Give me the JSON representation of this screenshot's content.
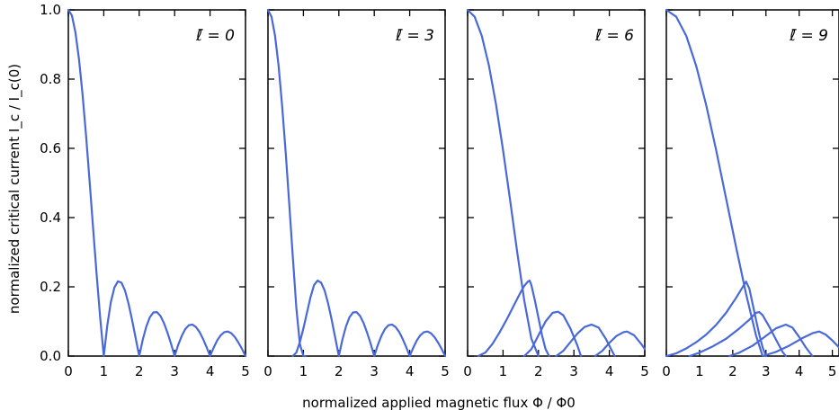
{
  "chart_data": {
    "type": "line",
    "ylabel": "normalized critical current I_c / I_c(0)",
    "xlabel": "normalized applied magnetic flux Φ / Φ0",
    "ylim": [
      0.0,
      1.0
    ],
    "grid": false,
    "line_color": "#4a69d8",
    "y_ticks": [
      "0.0",
      "0.2",
      "0.4",
      "0.6",
      "0.8",
      "1.0"
    ],
    "panels": [
      {
        "label": "ℓ̄ = 0",
        "xlim": [
          0,
          5
        ],
        "x_ticks": [
          "0",
          "1",
          "2",
          "3",
          "4",
          "5"
        ],
        "series": [
          {
            "x": [
              0,
              0.1,
              0.2,
              0.3,
              0.4,
              0.5,
              0.6,
              0.7,
              0.8,
              0.9,
              1.0,
              1.1,
              1.2,
              1.3,
              1.4,
              1.5,
              1.6,
              1.7,
              1.8,
              1.9,
              2.0,
              2.1,
              2.2,
              2.3,
              2.4,
              2.5,
              2.6,
              2.7,
              2.8,
              2.9,
              3.0,
              3.1,
              3.2,
              3.3,
              3.4,
              3.5,
              3.6,
              3.7,
              3.8,
              3.9,
              4.0,
              4.1,
              4.2,
              4.3,
              4.4,
              4.5,
              4.6,
              4.7,
              4.8,
              4.9,
              5.0
            ],
            "y": [
              1.0,
              0.984,
              0.935,
              0.858,
              0.757,
              0.637,
              0.505,
              0.368,
              0.234,
              0.109,
              0.0,
              0.089,
              0.156,
              0.198,
              0.216,
              0.212,
              0.189,
              0.151,
              0.104,
              0.052,
              0.0,
              0.047,
              0.085,
              0.112,
              0.126,
              0.127,
              0.116,
              0.095,
              0.067,
              0.035,
              0.0,
              0.032,
              0.058,
              0.078,
              0.089,
              0.091,
              0.084,
              0.07,
              0.05,
              0.026,
              0.0,
              0.024,
              0.045,
              0.06,
              0.069,
              0.071,
              0.066,
              0.055,
              0.039,
              0.021,
              0.0
            ]
          }
        ]
      },
      {
        "label": "ℓ̄ = 3",
        "xlim": [
          0,
          5
        ],
        "x_ticks": [
          "0",
          "1",
          "2",
          "3",
          "4",
          "5"
        ],
        "series": [
          {
            "x": [
              0,
              0.1,
              0.2,
              0.3,
              0.4,
              0.5,
              0.6,
              0.7,
              0.8,
              0.9,
              1.0,
              1.05
            ],
            "y": [
              1.0,
              0.98,
              0.925,
              0.838,
              0.722,
              0.588,
              0.44,
              0.288,
              0.14,
              0.035,
              0.0,
              0.0
            ]
          },
          {
            "x": [
              0.7,
              0.8,
              0.9,
              1.0,
              1.1,
              1.2,
              1.3,
              1.4,
              1.5,
              1.6,
              1.7,
              1.8,
              1.9,
              2.0
            ],
            "y": [
              0.0,
              0.01,
              0.04,
              0.08,
              0.125,
              0.17,
              0.205,
              0.218,
              0.212,
              0.189,
              0.151,
              0.104,
              0.052,
              0.0
            ]
          },
          {
            "x": [
              2.0,
              2.1,
              2.2,
              2.3,
              2.4,
              2.5,
              2.6,
              2.7,
              2.8,
              2.9,
              3.0
            ],
            "y": [
              0.0,
              0.047,
              0.085,
              0.112,
              0.126,
              0.127,
              0.116,
              0.095,
              0.067,
              0.035,
              0.0
            ]
          },
          {
            "x": [
              3.0,
              3.1,
              3.2,
              3.3,
              3.4,
              3.5,
              3.6,
              3.7,
              3.8,
              3.9,
              4.0
            ],
            "y": [
              0.0,
              0.032,
              0.058,
              0.078,
              0.089,
              0.091,
              0.084,
              0.07,
              0.05,
              0.026,
              0.0
            ]
          },
          {
            "x": [
              4.0,
              4.1,
              4.2,
              4.3,
              4.4,
              4.5,
              4.6,
              4.7,
              4.8,
              4.9,
              5.0
            ],
            "y": [
              0.0,
              0.024,
              0.045,
              0.06,
              0.069,
              0.071,
              0.066,
              0.055,
              0.039,
              0.021,
              0.0
            ]
          }
        ]
      },
      {
        "label": "ℓ̄ = 6",
        "xlim": [
          0,
          5
        ],
        "x_ticks": [
          "0",
          "1",
          "2",
          "3",
          "4",
          "5"
        ],
        "series": [
          {
            "x": [
              0,
              0.2,
              0.4,
              0.6,
              0.8,
              1.0,
              1.2,
              1.4,
              1.6,
              1.8,
              2.0
            ],
            "y": [
              1.0,
              0.98,
              0.925,
              0.84,
              0.728,
              0.595,
              0.45,
              0.3,
              0.16,
              0.05,
              0.0
            ]
          },
          {
            "x": [
              0.3,
              0.5,
              0.7,
              0.9,
              1.1,
              1.3,
              1.5,
              1.6,
              1.7,
              1.75,
              1.8,
              1.9,
              2.0,
              2.1,
              2.2,
              2.3
            ],
            "y": [
              0.0,
              0.01,
              0.035,
              0.068,
              0.105,
              0.145,
              0.185,
              0.203,
              0.215,
              0.218,
              0.205,
              0.16,
              0.11,
              0.06,
              0.02,
              0.0
            ]
          },
          {
            "x": [
              1.6,
              1.8,
              2.0,
              2.2,
              2.4,
              2.55,
              2.7,
              2.9,
              3.1,
              3.2
            ],
            "y": [
              0.0,
              0.02,
              0.06,
              0.1,
              0.125,
              0.128,
              0.118,
              0.08,
              0.03,
              0.0
            ]
          },
          {
            "x": [
              2.5,
              2.7,
              2.9,
              3.1,
              3.3,
              3.5,
              3.7,
              3.9,
              4.1,
              4.15
            ],
            "y": [
              0.0,
              0.015,
              0.04,
              0.065,
              0.084,
              0.091,
              0.082,
              0.05,
              0.01,
              0.0
            ]
          },
          {
            "x": [
              3.6,
              3.8,
              4.0,
              4.2,
              4.4,
              4.5,
              4.7,
              4.9,
              5.0
            ],
            "y": [
              0.0,
              0.015,
              0.038,
              0.058,
              0.069,
              0.071,
              0.06,
              0.035,
              0.02
            ]
          }
        ]
      },
      {
        "label": "ℓ̄ = 9",
        "xlim": [
          0,
          5.2
        ],
        "x_ticks": [
          "0",
          "1",
          "2",
          "3",
          "4",
          "5"
        ],
        "series": [
          {
            "x": [
              0,
              0.3,
              0.6,
              0.9,
              1.2,
              1.5,
              1.8,
              2.1,
              2.4,
              2.7,
              2.9
            ],
            "y": [
              1.0,
              0.98,
              0.925,
              0.838,
              0.725,
              0.595,
              0.455,
              0.315,
              0.18,
              0.06,
              0.0
            ]
          },
          {
            "x": [
              0.0,
              0.3,
              0.6,
              0.9,
              1.2,
              1.5,
              1.8,
              2.1,
              2.4,
              2.5,
              2.6,
              2.7,
              2.8,
              2.9,
              3.0
            ],
            "y": [
              0.0,
              0.008,
              0.022,
              0.04,
              0.062,
              0.09,
              0.125,
              0.168,
              0.215,
              0.195,
              0.15,
              0.105,
              0.062,
              0.025,
              0.0
            ]
          },
          {
            "x": [
              0.7,
              1.0,
              1.4,
              1.8,
              2.2,
              2.5,
              2.7,
              2.8,
              2.9,
              3.1,
              3.3,
              3.5,
              3.6
            ],
            "y": [
              0.0,
              0.01,
              0.028,
              0.05,
              0.08,
              0.105,
              0.125,
              0.127,
              0.118,
              0.085,
              0.048,
              0.012,
              0.0
            ]
          },
          {
            "x": [
              1.9,
              2.2,
              2.6,
              3.0,
              3.3,
              3.6,
              3.8,
              4.0,
              4.2,
              4.4
            ],
            "y": [
              0.0,
              0.01,
              0.03,
              0.058,
              0.08,
              0.091,
              0.082,
              0.055,
              0.025,
              0.0
            ]
          },
          {
            "x": [
              2.9,
              3.3,
              3.7,
              4.1,
              4.4,
              4.6,
              4.8,
              5.0,
              5.2
            ],
            "y": [
              0.0,
              0.012,
              0.03,
              0.052,
              0.066,
              0.071,
              0.062,
              0.045,
              0.025
            ]
          }
        ]
      }
    ]
  }
}
